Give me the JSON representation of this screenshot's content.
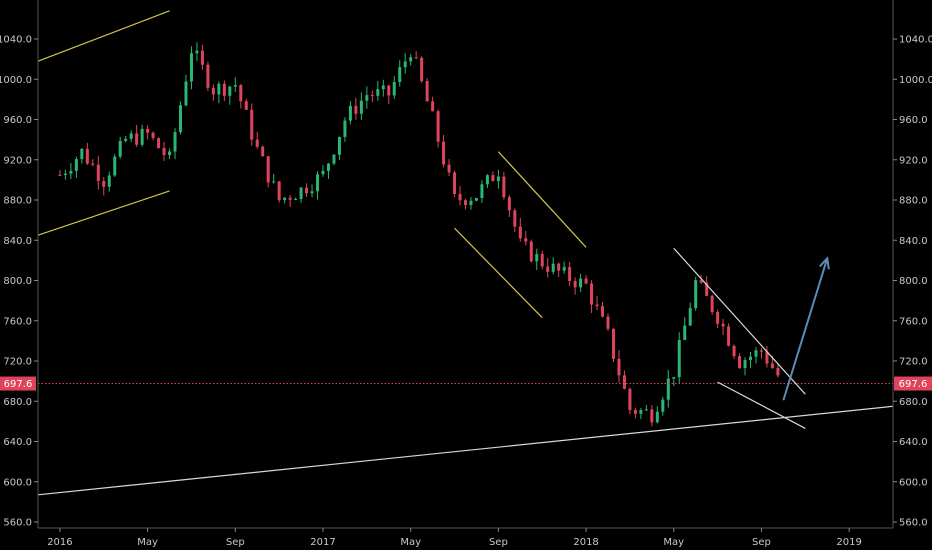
{
  "chart_data": {
    "type": "candlestick",
    "ylim": [
      555,
      1080
    ],
    "y_ticks": [
      1040.0,
      1000.0,
      960.0,
      920.0,
      880.0,
      840.0,
      800.0,
      760.0,
      720.0,
      680.0,
      640.0,
      600.0,
      560.0
    ],
    "x_ticks": [
      "2016",
      "May",
      "Sep",
      "2017",
      "May",
      "Sep",
      "2018",
      "May",
      "Sep",
      "2019"
    ],
    "x_tick_dates": [
      "2016-01",
      "2016-05",
      "2016-09",
      "2017-01",
      "2017-05",
      "2017-09",
      "2018-01",
      "2018-05",
      "2018-09",
      "2019-01"
    ],
    "x_domain": [
      "2015-12",
      "2019-03"
    ],
    "grid": false,
    "last_price": "697.6",
    "price_series": [
      {
        "date": "2016-01",
        "close": 905
      },
      {
        "date": "2016-02",
        "close": 928
      },
      {
        "date": "2016-03",
        "close": 900
      },
      {
        "date": "2016-04",
        "close": 940
      },
      {
        "date": "2016-05",
        "close": 945
      },
      {
        "date": "2016-06",
        "close": 920
      },
      {
        "date": "2016-07",
        "close": 1030
      },
      {
        "date": "2016-08",
        "close": 990
      },
      {
        "date": "2016-09",
        "close": 995
      },
      {
        "date": "2016-10",
        "close": 930
      },
      {
        "date": "2016-11",
        "close": 880
      },
      {
        "date": "2016-12",
        "close": 890
      },
      {
        "date": "2017-01",
        "close": 905
      },
      {
        "date": "2017-02",
        "close": 960
      },
      {
        "date": "2017-03",
        "close": 985
      },
      {
        "date": "2017-04",
        "close": 985
      },
      {
        "date": "2017-05",
        "close": 1030
      },
      {
        "date": "2017-06",
        "close": 960
      },
      {
        "date": "2017-07",
        "close": 880
      },
      {
        "date": "2017-08",
        "close": 885
      },
      {
        "date": "2017-09",
        "close": 910
      },
      {
        "date": "2017-10",
        "close": 835
      },
      {
        "date": "2017-11",
        "close": 818
      },
      {
        "date": "2017-12",
        "close": 805
      },
      {
        "date": "2018-01",
        "close": 795
      },
      {
        "date": "2018-02",
        "close": 745
      },
      {
        "date": "2018-03",
        "close": 672
      },
      {
        "date": "2018-04",
        "close": 668
      },
      {
        "date": "2018-05",
        "close": 710
      },
      {
        "date": "2018-06",
        "close": 798
      },
      {
        "date": "2018-07",
        "close": 765
      },
      {
        "date": "2018-08",
        "close": 720
      },
      {
        "date": "2018-09",
        "close": 730
      },
      {
        "date": "2018-10",
        "close": 697.6
      }
    ],
    "trendlines": [
      {
        "color": "#d4c24a",
        "from": [
          "2015-12",
          1018
        ],
        "to": [
          "2016-06",
          1068
        ]
      },
      {
        "color": "#d4c24a",
        "from": [
          "2015-12",
          845
        ],
        "to": [
          "2016-06",
          889
        ]
      },
      {
        "color": "#d4c24a",
        "from": [
          "2017-07",
          852
        ],
        "to": [
          "2017-11",
          763
        ]
      },
      {
        "color": "#d4c24a",
        "from": [
          "2017-09",
          928
        ],
        "to": [
          "2018-01",
          833
        ]
      },
      {
        "color": "#d9d9d9",
        "from": [
          "2018-05",
          832
        ],
        "to": [
          "2018-11",
          687
        ]
      },
      {
        "color": "#d9d9d9",
        "from": [
          "2018-07",
          699
        ],
        "to": [
          "2018-11",
          653
        ]
      },
      {
        "color": "#d9d9d9",
        "from": [
          "2015-12",
          587
        ],
        "to": [
          "2019-03",
          675
        ]
      }
    ],
    "arrow": {
      "color": "#5b8db8",
      "from": [
        "2018-10",
        681
      ],
      "to": [
        "2018-12",
        822
      ]
    },
    "colors": {
      "up": "#2bb673",
      "down": "#e0445c",
      "price_line": "#e0445c",
      "axis_text": "#c8c8c8"
    }
  }
}
